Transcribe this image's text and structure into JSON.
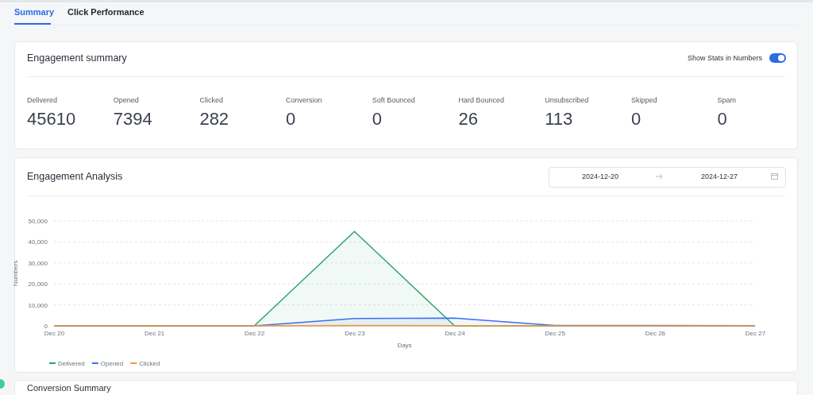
{
  "chart_data": [
    {
      "type": "other",
      "title": "Engagement summary",
      "annotations": [
        "Summary",
        "Click Performance",
        "Show Stats in Numbers"
      ],
      "categories": [
        "Delivered",
        "Opened",
        "Clicked",
        "Conversion",
        "Soft Bounced",
        "Hard Bounced",
        "Unsubscribed",
        "Skipped",
        "Spam"
      ],
      "values": [
        45610,
        7394,
        282,
        0,
        0,
        26,
        113,
        0,
        0
      ],
      "data_labels": true
    },
    {
      "type": "area",
      "title": "Engagement Analysis",
      "xlabel": "Days",
      "ylabel": "Numbers",
      "annotations": [
        "2024-12-20",
        "2024-12-27",
        "Conversion Summary"
      ],
      "categories": [
        "Dec 20",
        "Dec 21",
        "Dec 22",
        "Dec 23",
        "Dec 24",
        "Dec 25",
        "Dec 26",
        "Dec 27"
      ],
      "ylim": [
        0,
        50000
      ],
      "yticks": [
        0,
        {
          "value": 10000,
          "label": "10,000"
        },
        {
          "value": 20000,
          "label": "20,000"
        },
        {
          "value": 30000,
          "label": "30,000"
        },
        {
          "value": 40000,
          "label": "40,000"
        },
        {
          "value": 50000,
          "label": "50,000"
        }
      ],
      "grid": "y",
      "legend": "bottom",
      "marker": "none",
      "line_style": "solid",
      "series": [
        {
          "name": "Delivered",
          "color": "#2ea46b",
          "values": [
            0,
            0,
            0,
            45000,
            0,
            0,
            0,
            0
          ]
        },
        {
          "name": "Opened",
          "color": "#3b6ff0",
          "values": [
            0,
            0,
            0,
            3500,
            3700,
            200,
            200,
            100
          ]
        },
        {
          "name": "Clicked",
          "color": "#f39a3c",
          "values": [
            0,
            0,
            0,
            200,
            100,
            0,
            0,
            0
          ]
        }
      ]
    }
  ]
}
